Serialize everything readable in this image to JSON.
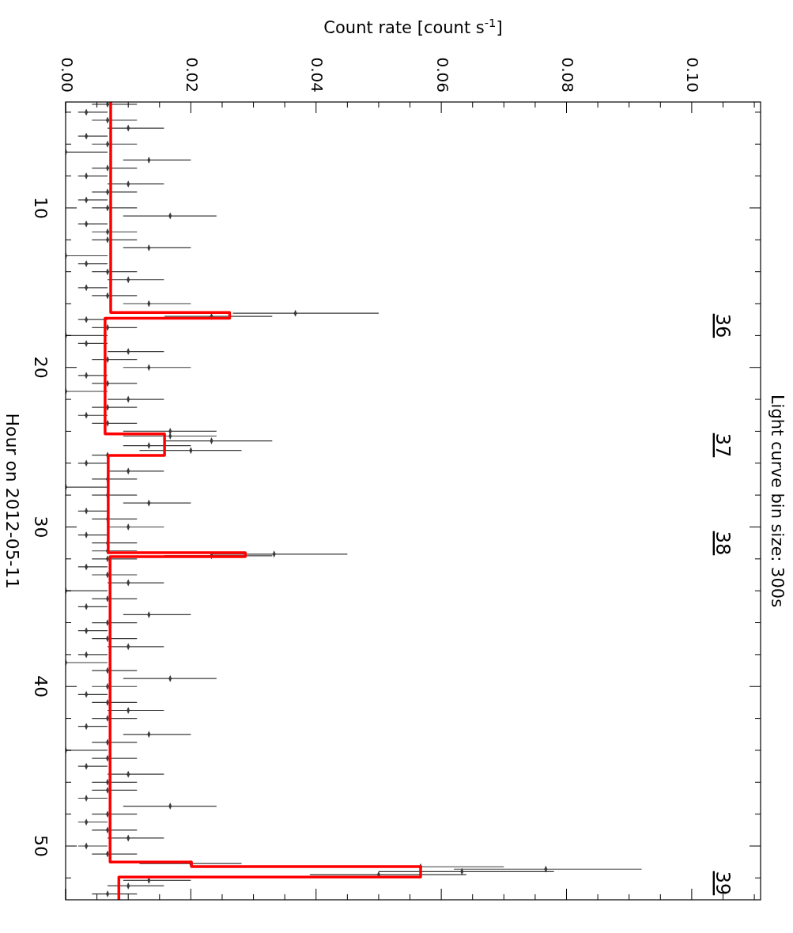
{
  "chart_data": {
    "type": "scatter",
    "title": "Light curve bin size: 300s",
    "xlabel": "Count rate [count s$^{-1}$]",
    "ylabel": "Hour on 2012-05-11",
    "xlim": [
      0,
      0.111
    ],
    "ylim": [
      53.37,
      3.36
    ],
    "xticks": [
      {
        "value": 0,
        "label": "0.00"
      },
      {
        "value": 0.005,
        "label": null
      },
      {
        "value": 0.01,
        "label": null
      },
      {
        "value": 0.015,
        "label": null
      },
      {
        "value": 0.02,
        "label": "0.02"
      },
      {
        "value": 0.025,
        "label": null
      },
      {
        "value": 0.03,
        "label": null
      },
      {
        "value": 0.035,
        "label": null
      },
      {
        "value": 0.04,
        "label": "0.04"
      },
      {
        "value": 0.045,
        "label": null
      },
      {
        "value": 0.05,
        "label": null
      },
      {
        "value": 0.055,
        "label": null
      },
      {
        "value": 0.06,
        "label": "0.06"
      },
      {
        "value": 0.065,
        "label": null
      },
      {
        "value": 0.07,
        "label": null
      },
      {
        "value": 0.075,
        "label": null
      },
      {
        "value": 0.08,
        "label": "0.08"
      },
      {
        "value": 0.085,
        "label": null
      },
      {
        "value": 0.09,
        "label": null
      },
      {
        "value": 0.095,
        "label": null
      },
      {
        "value": 0.1,
        "label": "0.10"
      },
      {
        "value": 0.105,
        "label": null
      },
      {
        "value": 0.11,
        "label": null
      }
    ],
    "yticks": [
      {
        "value": 4,
        "label": null
      },
      {
        "value": 6,
        "label": null
      },
      {
        "value": 8,
        "label": null
      },
      10,
      {
        "value": 12,
        "label": null
      },
      {
        "value": 14,
        "label": null
      },
      {
        "value": 16,
        "label": null
      },
      {
        "value": 18,
        "label": null
      },
      20,
      {
        "value": 22,
        "label": null
      },
      {
        "value": 24,
        "label": null
      },
      {
        "value": 26,
        "label": null
      },
      {
        "value": 28,
        "label": null
      },
      30,
      {
        "value": 32,
        "label": null
      },
      {
        "value": 34,
        "label": null
      },
      {
        "value": 36,
        "label": null
      },
      {
        "value": 38,
        "label": null
      },
      40,
      {
        "value": 42,
        "label": null
      },
      {
        "value": 44,
        "label": null
      },
      {
        "value": 46,
        "label": null
      },
      {
        "value": 48,
        "label": null
      },
      50,
      {
        "value": 52,
        "label": null
      }
    ],
    "annotations": [
      "36",
      "37",
      "38",
      "39"
    ],
    "series": [
      {
        "color": "#3a3a3a",
        "values": [
          3.5,
          4,
          4.5,
          5,
          5.5,
          6,
          6.5,
          7,
          7.5,
          8,
          8.5,
          9,
          9.5,
          10,
          10.5,
          11,
          11.5,
          12,
          12.5,
          13,
          13.5,
          14,
          14.5,
          15,
          15.5,
          16,
          16.6,
          16.8,
          17,
          17.5,
          18,
          18.5,
          19,
          19.5,
          20,
          20.5,
          21,
          21.5,
          22,
          22.5,
          23,
          23.5,
          24,
          24.3,
          24.6,
          24.9,
          25.2,
          25.5,
          26,
          26.5,
          27,
          27.5,
          28,
          28.5,
          29,
          29.5,
          30,
          30.5,
          31,
          31.5,
          31.7,
          31.8,
          32,
          32.5,
          33,
          33.5,
          34,
          34.5,
          35,
          35.5,
          36,
          36.5,
          37,
          37.5,
          38,
          38.5,
          39,
          39.5,
          40,
          40.5,
          41,
          41.5,
          42,
          42.5,
          43,
          43.5,
          44,
          44.5,
          45,
          45.5,
          46,
          46.5,
          47,
          47.5,
          48,
          48.5,
          49,
          49.5,
          50,
          50.5,
          51.1,
          51.3,
          51.45,
          51.6,
          51.8,
          52.15,
          52.5,
          53
        ],
        "x": [
          0.0067,
          0.0033,
          0.0067,
          0.01,
          0.0033,
          0.0067,
          0,
          0.0133,
          0.0067,
          0.0033,
          0.01,
          0.0067,
          0.0033,
          0.0067,
          0.0167,
          0.0033,
          0.0067,
          0.0067,
          0.0133,
          0,
          0.0033,
          0.0067,
          0.01,
          0.0033,
          0.0067,
          0.0133,
          0.0367,
          0.0233,
          0.0033,
          0.0067,
          0,
          0.0033,
          0.01,
          0.0067,
          0.0133,
          0.0033,
          0.0067,
          0,
          0.01,
          0.0067,
          0.0033,
          0.0067,
          0.0167,
          0.0167,
          0.0233,
          0.0133,
          0.02,
          0.0067,
          0.0033,
          0.01,
          0.0067,
          0,
          0.0067,
          0.0133,
          0.0033,
          0.0067,
          0.01,
          0.0033,
          0.0067,
          0.0067,
          0.0333,
          0.0233,
          0.0067,
          0.0033,
          0.0067,
          0.01,
          0,
          0.0067,
          0.0033,
          0.0133,
          0.0067,
          0.0033,
          0.0067,
          0.01,
          0.0033,
          0,
          0.0067,
          0.0167,
          0.0067,
          0.0033,
          0.0067,
          0.01,
          0.0067,
          0.0033,
          0.0133,
          0.0067,
          0,
          0.0067,
          0.0033,
          0.01,
          0.0067,
          0.0067,
          0.0033,
          0.0167,
          0.0067,
          0.0033,
          0.0067,
          0.01,
          0.0033,
          0.0067,
          0.02,
          0.0567,
          0.0767,
          0.0633,
          0.05,
          0.0133,
          0.01,
          0.0067
        ],
        "xerrors": [
          [
            0.0042,
            0.0114
          ],
          [
            0.002,
            0.0067
          ],
          [
            0.0042,
            0.0114
          ],
          [
            0.0067,
            0.0157
          ],
          [
            0.002,
            0.0067
          ],
          [
            0.0042,
            0.0114
          ],
          [
            0,
            0.0067
          ],
          [
            0.0092,
            0.02
          ],
          [
            0.0042,
            0.0114
          ],
          [
            0.002,
            0.0067
          ],
          [
            0.0067,
            0.0157
          ],
          [
            0.0042,
            0.0114
          ],
          [
            0.002,
            0.0067
          ],
          [
            0.0042,
            0.0114
          ],
          [
            0.0092,
            0.0241
          ],
          [
            0.002,
            0.0067
          ],
          [
            0.0042,
            0.0114
          ],
          [
            0.0042,
            0.0114
          ],
          [
            0.0092,
            0.02
          ],
          [
            0,
            0.0067
          ],
          [
            0.002,
            0.0067
          ],
          [
            0.0042,
            0.0114
          ],
          [
            0.0067,
            0.0157
          ],
          [
            0.002,
            0.0067
          ],
          [
            0.0042,
            0.0114
          ],
          [
            0.0092,
            0.02
          ],
          [
            0.0267,
            0.05
          ],
          [
            0.0158,
            0.033
          ],
          [
            0.002,
            0.0067
          ],
          [
            0.0042,
            0.0114
          ],
          [
            0,
            0.0067
          ],
          [
            0.002,
            0.0067
          ],
          [
            0.0067,
            0.0157
          ],
          [
            0.0042,
            0.0114
          ],
          [
            0.0092,
            0.02
          ],
          [
            0.002,
            0.0067
          ],
          [
            0.0042,
            0.0114
          ],
          [
            0,
            0.0067
          ],
          [
            0.0067,
            0.0157
          ],
          [
            0.0042,
            0.0114
          ],
          [
            0.002,
            0.0067
          ],
          [
            0.0042,
            0.0114
          ],
          [
            0.0092,
            0.0241
          ],
          [
            0.0092,
            0.0241
          ],
          [
            0.0158,
            0.033
          ],
          [
            0.0092,
            0.02
          ],
          [
            0.0118,
            0.0281
          ],
          [
            0.0042,
            0.0114
          ],
          [
            0.002,
            0.0067
          ],
          [
            0.0067,
            0.0157
          ],
          [
            0.0042,
            0.0114
          ],
          [
            0,
            0.0067
          ],
          [
            0.0042,
            0.0114
          ],
          [
            0.0092,
            0.02
          ],
          [
            0.002,
            0.0067
          ],
          [
            0.0042,
            0.0114
          ],
          [
            0.0067,
            0.0157
          ],
          [
            0.002,
            0.0067
          ],
          [
            0.0042,
            0.0114
          ],
          [
            0.0042,
            0.0114
          ],
          [
            0.0233,
            0.045
          ],
          [
            0.0158,
            0.033
          ],
          [
            0.0042,
            0.0114
          ],
          [
            0.002,
            0.0067
          ],
          [
            0.0042,
            0.0114
          ],
          [
            0.0067,
            0.0157
          ],
          [
            0,
            0.0067
          ],
          [
            0.0042,
            0.0114
          ],
          [
            0.002,
            0.0067
          ],
          [
            0.0092,
            0.02
          ],
          [
            0.0042,
            0.0114
          ],
          [
            0.002,
            0.0067
          ],
          [
            0.0042,
            0.0114
          ],
          [
            0.0067,
            0.0157
          ],
          [
            0.002,
            0.0067
          ],
          [
            0,
            0.0067
          ],
          [
            0.0042,
            0.0114
          ],
          [
            0.0092,
            0.0241
          ],
          [
            0.0042,
            0.0114
          ],
          [
            0.002,
            0.0067
          ],
          [
            0.0042,
            0.0114
          ],
          [
            0.0067,
            0.0157
          ],
          [
            0.0042,
            0.0114
          ],
          [
            0.002,
            0.0067
          ],
          [
            0.0092,
            0.02
          ],
          [
            0.0042,
            0.0114
          ],
          [
            0,
            0.0067
          ],
          [
            0.0042,
            0.0114
          ],
          [
            0.002,
            0.0067
          ],
          [
            0.0067,
            0.0157
          ],
          [
            0.0042,
            0.0114
          ],
          [
            0.0042,
            0.0114
          ],
          [
            0.002,
            0.0067
          ],
          [
            0.0092,
            0.0241
          ],
          [
            0.0042,
            0.0114
          ],
          [
            0.002,
            0.0067
          ],
          [
            0.0042,
            0.0114
          ],
          [
            0.0067,
            0.0157
          ],
          [
            0.002,
            0.0067
          ],
          [
            0.0042,
            0.0114
          ],
          [
            0.0118,
            0.0281
          ],
          [
            0.045,
            0.07
          ],
          [
            0.062,
            0.092
          ],
          [
            0.05,
            0.078
          ],
          [
            0.039,
            0.064
          ],
          [
            0.0092,
            0.02
          ],
          [
            0.0067,
            0.0157
          ],
          [
            0.0042,
            0.0114
          ]
        ]
      },
      {
        "type": "line",
        "color": "#ff0000",
        "x": [
          0.0072,
          0.0072,
          0.0262,
          0.0262,
          0.0063,
          0.0063,
          0.0158,
          0.0158,
          0.0068,
          0.0068,
          0.0287,
          0.0287,
          0.0071,
          0.0071,
          0.0201,
          0.0201,
          0.0567,
          0.0567,
          0.0085,
          0.0085
        ],
        "values": [
          3.36,
          16.56,
          16.56,
          16.91,
          16.91,
          24.16,
          24.16,
          25.51,
          25.51,
          31.61,
          31.61,
          31.86,
          31.86,
          51.0,
          51.0,
          51.29,
          51.29,
          51.94,
          51.94,
          53.37
        ]
      }
    ]
  }
}
